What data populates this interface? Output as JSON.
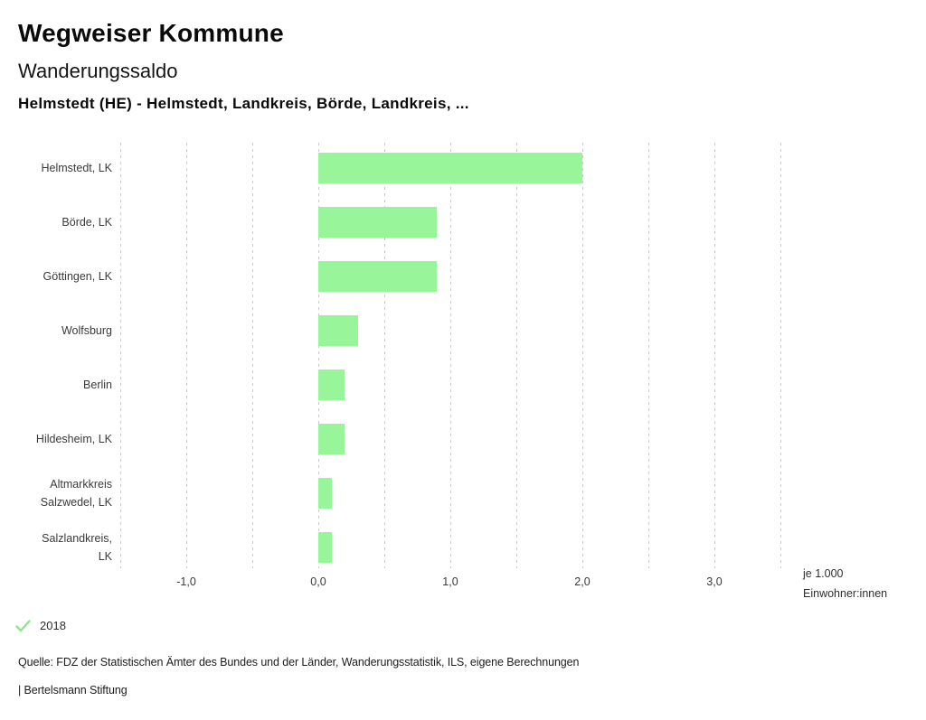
{
  "header": {
    "title": "Wegweiser Kommune",
    "subtitle": "Wanderungssaldo",
    "selection": "Helmstedt (HE) - Helmstedt, Landkreis, Börde, Landkreis, ..."
  },
  "colors": {
    "bar": "#99f599",
    "grid": "#c9c9c9",
    "legend_check": "#8de58d"
  },
  "chart_data": {
    "type": "bar",
    "orientation": "horizontal",
    "title": "Wanderungssaldo",
    "categories": [
      "Helmstedt, LK",
      "Börde, LK",
      "Göttingen, LK",
      "Wolfsburg",
      "Berlin",
      "Hildesheim, LK",
      "Altmarkkreis Salzwedel, LK",
      "Salzlandkreis, LK"
    ],
    "category_lines": [
      [
        "Helmstedt, LK"
      ],
      [
        "Börde, LK"
      ],
      [
        "Göttingen, LK"
      ],
      [
        "Wolfsburg"
      ],
      [
        "Berlin"
      ],
      [
        "Hildesheim, LK"
      ],
      [
        "Altmarkkreis",
        "Salzwedel, LK"
      ],
      [
        "Salzlandkreis,",
        "LK"
      ]
    ],
    "series": [
      {
        "name": "2018",
        "values": [
          2.0,
          0.9,
          0.9,
          0.3,
          0.2,
          0.2,
          0.1,
          0.1
        ]
      }
    ],
    "xlim": [
      -1.5,
      3.5
    ],
    "grid": true,
    "grid_step": 0.5,
    "x_ticks": [
      {
        "value": -1,
        "label": "-1,0"
      },
      {
        "value": 0,
        "label": "0,0"
      },
      {
        "value": 1,
        "label": "1,0"
      },
      {
        "value": 2,
        "label": "2,0"
      },
      {
        "value": 3,
        "label": "3,0"
      }
    ],
    "unit_label": [
      "je 1.000",
      "Einwohner:innen"
    ],
    "legend": {
      "position": "bottom-left",
      "items": [
        {
          "label": "2018",
          "marker": "check"
        }
      ]
    }
  },
  "footer": {
    "source": "Quelle: FDZ der Statistischen Ämter des Bundes und der Länder, Wanderungsstatistik, ILS, eigene Berechnungen",
    "branding": "| Bertelsmann Stiftung"
  }
}
